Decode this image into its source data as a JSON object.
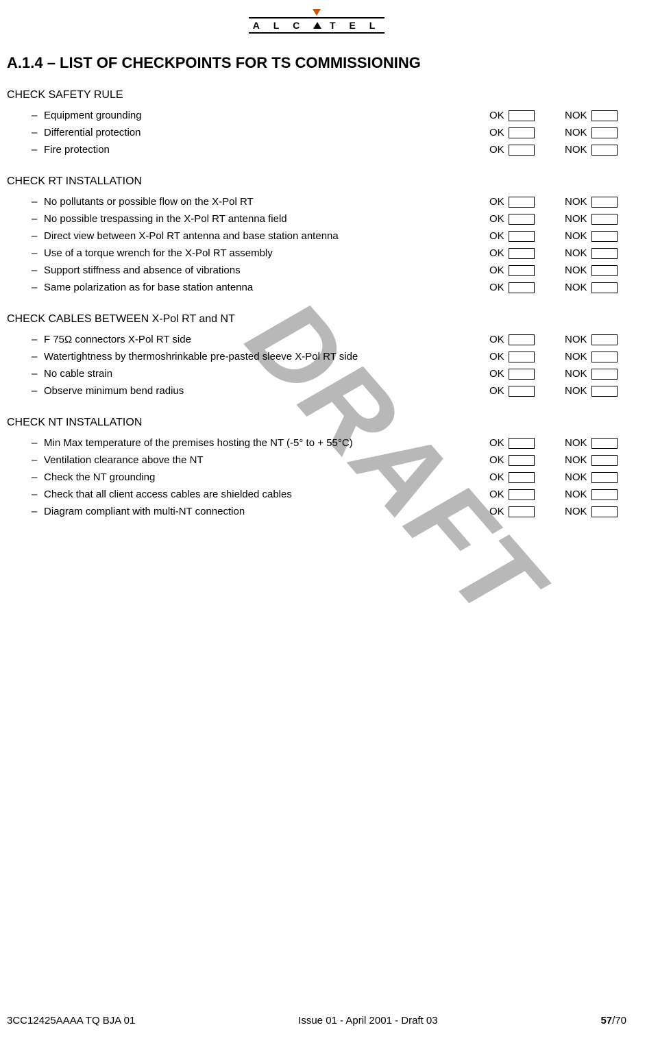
{
  "logo": {
    "brand": "ALCATEL"
  },
  "title": "A.1.4 – LIST OF CHECKPOINTS FOR TS COMMISSIONING",
  "ok_label": "OK",
  "nok_label": "NOK",
  "watermark": "DRAFT",
  "groups": [
    {
      "title": "CHECK SAFETY RULE",
      "items": [
        "Equipment grounding",
        "Differential protection",
        "Fire protection"
      ]
    },
    {
      "title": "CHECK RT INSTALLATION",
      "items": [
        "No pollutants or possible flow on the X-Pol RT",
        "No possible trespassing in the X-Pol RT antenna field",
        "Direct view between X-Pol RT antenna and base station antenna",
        "Use of a torque wrench for the X-Pol RT assembly",
        "Support stiffness and absence of vibrations",
        "Same polarization as for base station antenna"
      ]
    },
    {
      "title": "CHECK CABLES BETWEEN X-Pol RT and NT",
      "items": [
        "F 75Ω connectors X-Pol RT side",
        "Watertightness by thermoshrinkable pre-pasted sleeve X-Pol RT side",
        "No cable strain",
        "Observe minimum bend radius"
      ]
    },
    {
      "title": "CHECK NT INSTALLATION",
      "items": [
        "Min Max temperature of the premises hosting the NT (-5° to + 55°C)",
        "Ventilation clearance above the NT",
        "Check the NT grounding",
        "Check that all client access cables are shielded cables",
        "Diagram compliant with multi-NT connection"
      ],
      "trailing_blank_row": true
    }
  ],
  "footer": {
    "left": "3CC12425AAAA TQ BJA 01",
    "center": "Issue 01 - April 2001 - Draft 03",
    "page_current": "57",
    "page_total": "/70"
  }
}
